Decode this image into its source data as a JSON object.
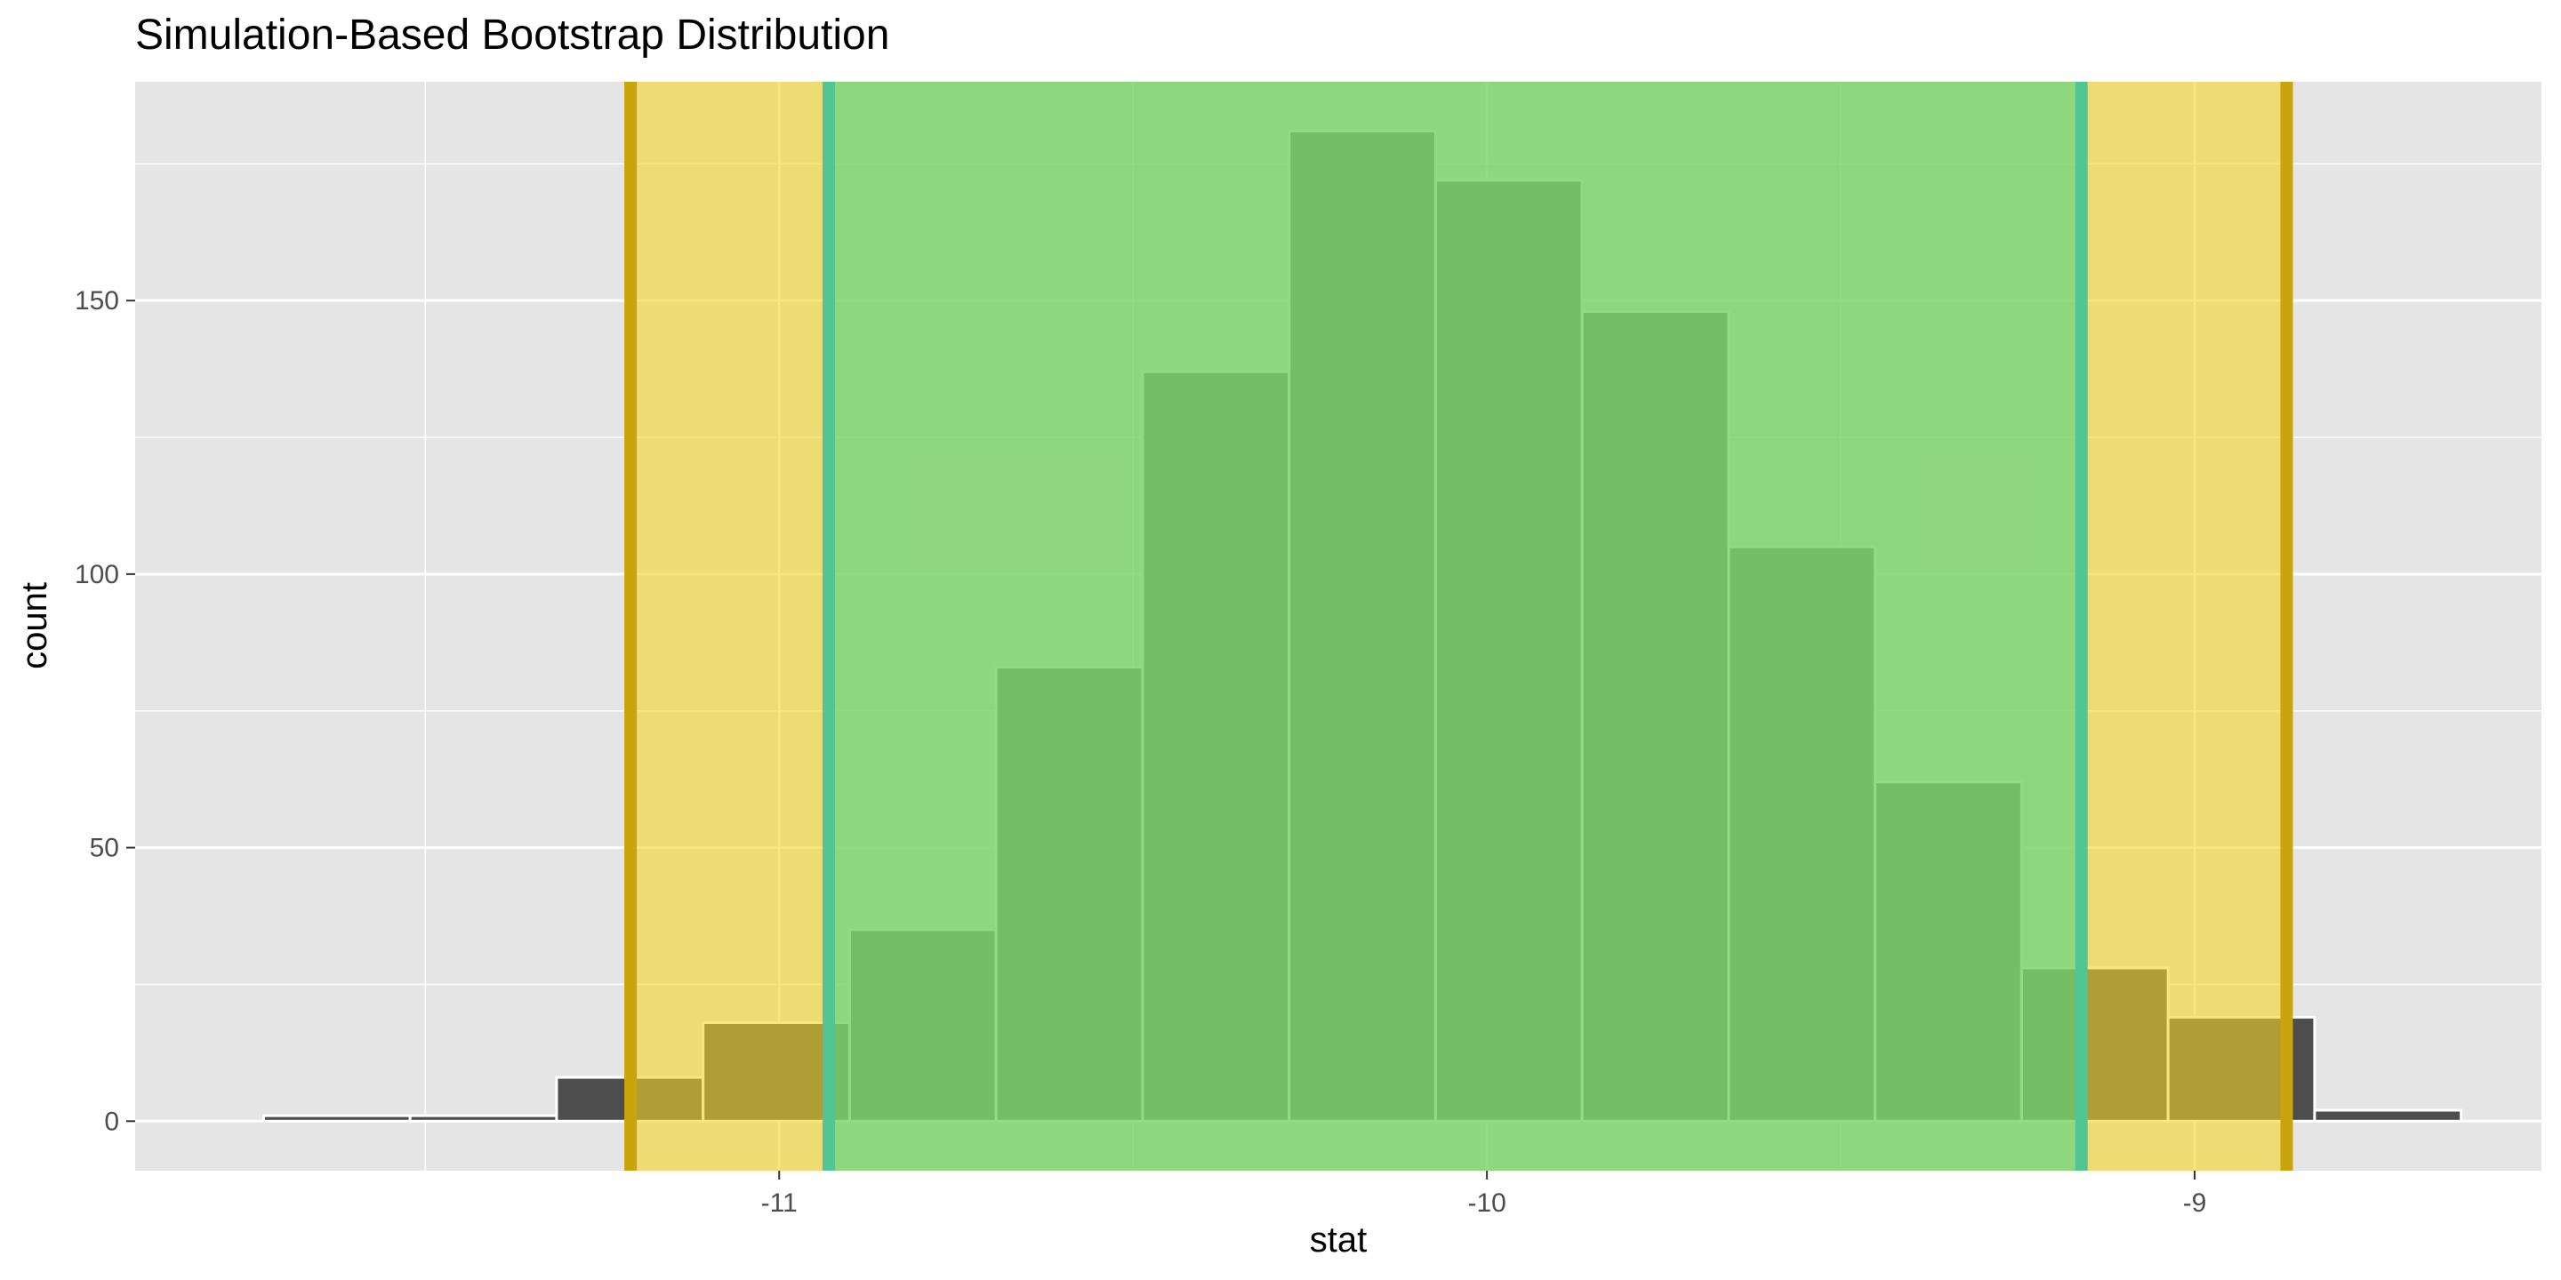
{
  "chart_data": {
    "type": "bar",
    "title": "Simulation-Based Bootstrap Distribution",
    "xlabel": "stat",
    "ylabel": "count",
    "xlim": [
      -11.91,
      -8.51
    ],
    "ylim": [
      -9.05,
      190
    ],
    "x_ticks": [
      -11,
      -10,
      -9
    ],
    "x_tick_labels": [
      "-11",
      "-10",
      "-9"
    ],
    "y_ticks": [
      0,
      50,
      100,
      150
    ],
    "y_tick_labels": [
      "0",
      "50",
      "100",
      "150"
    ],
    "grid": true,
    "bin_width": 0.207,
    "bins": [
      {
        "x": -11.625,
        "count": 1
      },
      {
        "x": -11.418,
        "count": 1
      },
      {
        "x": -11.211,
        "count": 8
      },
      {
        "x": -11.004,
        "count": 18
      },
      {
        "x": -10.797,
        "count": 35
      },
      {
        "x": -10.59,
        "count": 83
      },
      {
        "x": -10.383,
        "count": 137
      },
      {
        "x": -10.176,
        "count": 181
      },
      {
        "x": -9.969,
        "count": 172
      },
      {
        "x": -9.762,
        "count": 148
      },
      {
        "x": -9.555,
        "count": 105
      },
      {
        "x": -9.348,
        "count": 62
      },
      {
        "x": -9.141,
        "count": 28
      },
      {
        "x": -8.934,
        "count": 19
      },
      {
        "x": -8.727,
        "count": 2
      }
    ],
    "intervals": [
      {
        "lower": -11.21,
        "upper": -8.87,
        "fill": "#f5d328",
        "line": "#c9a40a"
      },
      {
        "lower": -10.93,
        "upper": -9.16,
        "fill": "#4fd487",
        "line": "#52c594"
      }
    ],
    "colors": {
      "panel": "#e5e5e5",
      "grid": "#ffffff",
      "bar_fill": "#4d4d4d",
      "bar_outline": "#ffffff"
    }
  }
}
